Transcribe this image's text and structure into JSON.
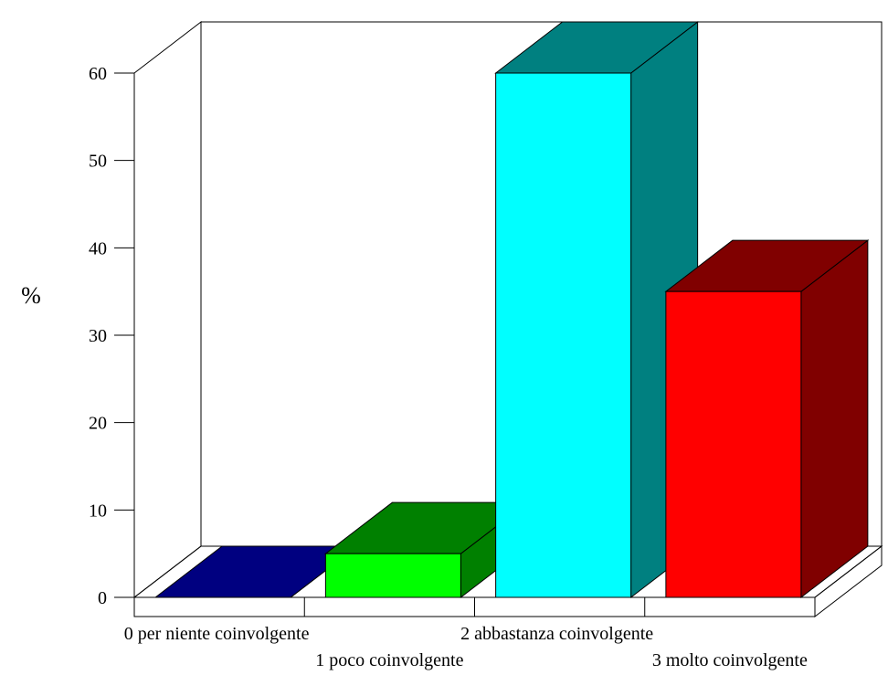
{
  "chart_data": {
    "type": "bar",
    "ylabel": "%",
    "categories": [
      "0 per niente coinvolgente",
      "1 poco coinvolgente",
      "2 abbastanza coinvolgente",
      "3 molto coinvolgente"
    ],
    "values": [
      0,
      5,
      60,
      35
    ],
    "ylim": [
      0,
      60
    ],
    "yticks": [
      0,
      10,
      20,
      30,
      40,
      50,
      60
    ],
    "grid": false,
    "legend": "none",
    "colors": [
      {
        "front": "#000080",
        "top": "#000080",
        "side": "#000080"
      },
      {
        "front": "#00ff00",
        "top": "#008000",
        "side": "#008000"
      },
      {
        "front": "#00ffff",
        "top": "#008080",
        "side": "#008080"
      },
      {
        "front": "#ff0000",
        "top": "#800000",
        "side": "#800000"
      }
    ]
  }
}
